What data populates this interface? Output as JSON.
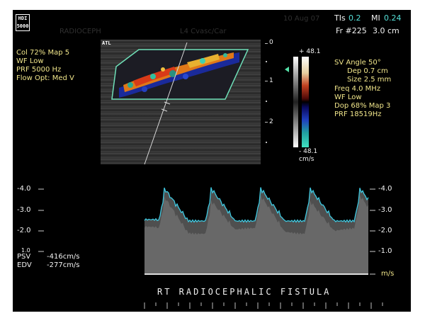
{
  "header": {
    "logo": "HDI 5000",
    "obscured_left": "RADIOCEPH",
    "obscured_mid": "L4 Cvasc/Car",
    "obscured_right": "10 Aug 07",
    "tis_label": "TIs",
    "tis_value": "0.2",
    "mi_label": "MI",
    "mi_value": "0.24",
    "frame": "Fr #225",
    "depth": "3.0 cm"
  },
  "color_settings": {
    "line1": "Col 72%  Map 5",
    "line2": "WF Low",
    "line3": "PRF 5000  Hz",
    "line4": "Flow Opt: Med V"
  },
  "bmode_tag": "ATL",
  "depth_ticks": [
    "0",
    "1",
    "2"
  ],
  "color_bar": {
    "top_value": "+ 48.1",
    "bottom_value": "- 48.1",
    "unit": "cm/s"
  },
  "doppler_settings": {
    "line1": "SV Angle 50°",
    "line2": "Dep 0.7  cm",
    "line3": "Size 2.5  mm",
    "line4": "Freq 4.0  MHz",
    "line5": "WF Low",
    "line6": "Dop 68%  Map 3",
    "line7": "PRF 18519Hz"
  },
  "spectral": {
    "left_scale": [
      "-4.0",
      "-3.0",
      "-2.0",
      "1.0"
    ],
    "right_scale": [
      "-4.0",
      "-3.0",
      "-2.0",
      "-1.0"
    ],
    "unit": "m/s",
    "psv_label": "PSV",
    "psv_value": "-416cm/s",
    "edv_label": "EDV",
    "edv_value": "-277cm/s",
    "annotation": "RT  RADIOCEPHALIC  FISTULA"
  },
  "colors": {
    "envelope": "#3fc8e0",
    "sample_box": "#6fe0b8",
    "values_yellow": "#f0e58a",
    "header_cyan": "#55e0d8"
  }
}
